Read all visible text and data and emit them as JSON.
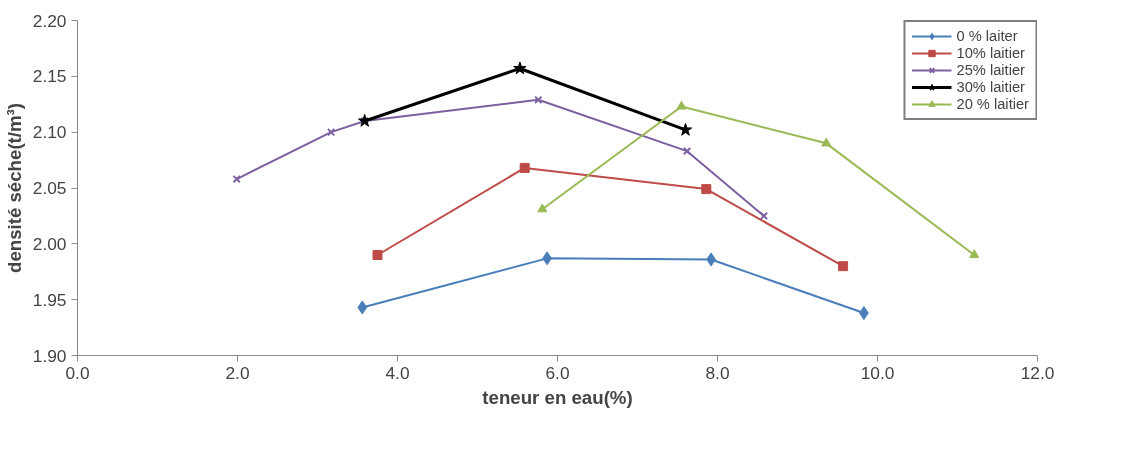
{
  "chart_data": {
    "type": "line",
    "xlabel": "teneur en eau(%)",
    "ylabel": "densité séche(t/m³)",
    "xlim": [
      0,
      12
    ],
    "ylim": [
      1.9,
      2.2
    ],
    "xticks": [
      {
        "value": 0,
        "label": "0.0"
      },
      {
        "value": 2,
        "label": "2.0"
      },
      {
        "value": 4,
        "label": "4.0"
      },
      {
        "value": 6,
        "label": "6.0"
      },
      {
        "value": 8,
        "label": "8.0"
      },
      {
        "value": 10,
        "label": "10.0"
      },
      {
        "value": 12,
        "label": "12.0"
      }
    ],
    "yticks": [
      {
        "value": 1.9,
        "label": "1.90"
      },
      {
        "value": 1.95,
        "label": "1.95"
      },
      {
        "value": 2.0,
        "label": "2.00"
      },
      {
        "value": 2.05,
        "label": "2.05"
      },
      {
        "value": 2.1,
        "label": "2.10"
      },
      {
        "value": 2.15,
        "label": "2.15"
      },
      {
        "value": 2.2,
        "label": "2.20"
      }
    ],
    "grid": false,
    "legend": "top right",
    "line_style": "solid",
    "series": [
      {
        "name": "0 % laiter",
        "color": "#4a7ebb",
        "marker": "diamond",
        "x": [
          3.56,
          5.87,
          7.92,
          9.83
        ],
        "values": [
          1.943,
          1.987,
          1.986,
          1.938
        ]
      },
      {
        "name": "10% laitier",
        "color": "#be4b48",
        "marker": "square",
        "x": [
          3.75,
          5.59,
          7.86,
          9.57
        ],
        "values": [
          1.99,
          2.068,
          2.049,
          1.98
        ]
      },
      {
        "name": "25% laitier",
        "color": "#7d60a0",
        "marker": "cross",
        "x": [
          1.99,
          3.17,
          3.59,
          5.76,
          7.62,
          8.58
        ],
        "values": [
          2.058,
          2.1,
          2.11,
          2.129,
          2.083,
          2.025
        ]
      },
      {
        "name": "30% laitier",
        "color": "#000000",
        "marker": "star",
        "x": [
          3.59,
          5.53,
          7.6
        ],
        "values": [
          2.11,
          2.157,
          2.102
        ]
      },
      {
        "name": "20 % laitier",
        "color": "#98b954",
        "marker": "triangle",
        "x": [
          5.81,
          7.55,
          9.36,
          11.21
        ],
        "values": [
          2.031,
          2.123,
          2.09,
          1.99
        ]
      }
    ]
  }
}
